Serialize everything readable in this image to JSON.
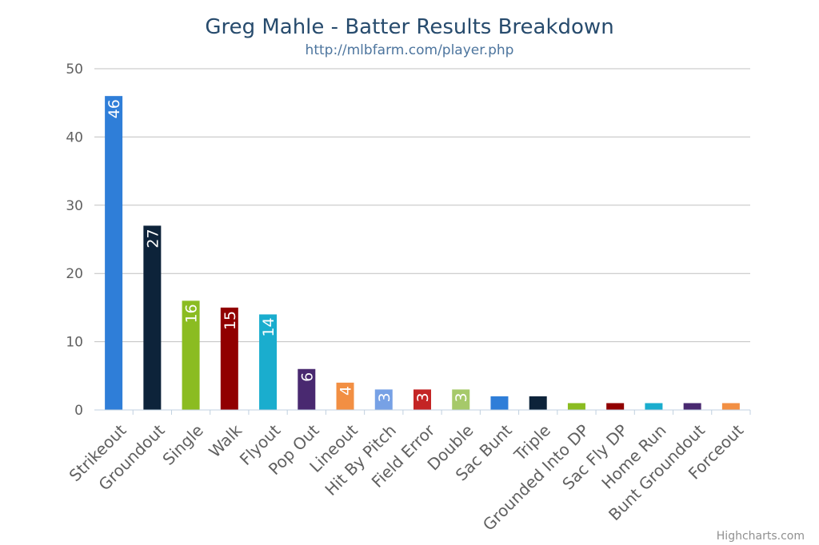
{
  "chart_data": {
    "type": "bar",
    "title": "Greg Mahle - Batter Results Breakdown",
    "subtitle": "http://mlbfarm.com/player.php",
    "credit": "Highcharts.com",
    "categories": [
      "Strikeout",
      "Groundout",
      "Single",
      "Walk",
      "Flyout",
      "Pop Out",
      "Lineout",
      "Hit By Pitch",
      "Field Error",
      "Double",
      "Sac Bunt",
      "Triple",
      "Grounded Into DP",
      "Sac Fly DP",
      "Home Run",
      "Bunt Groundout",
      "Forceout"
    ],
    "values": [
      46,
      27,
      16,
      15,
      14,
      6,
      4,
      3,
      3,
      3,
      2,
      2,
      1,
      1,
      1,
      1,
      1
    ],
    "data_labels": [
      "46",
      "27",
      "16",
      "15",
      "14",
      "6",
      "4",
      "3",
      "3",
      "3",
      "",
      "",
      "",
      "",
      "",
      "",
      ""
    ],
    "colors": [
      "#2f7ed8",
      "#0d233a",
      "#8bbc21",
      "#910000",
      "#1aadce",
      "#492970",
      "#f28f43",
      "#77a1e5",
      "#c42525",
      "#a6c96a",
      "#2f7ed8",
      "#0d233a",
      "#8bbc21",
      "#910000",
      "#1aadce",
      "#492970",
      "#f28f43"
    ],
    "yticks": [
      "0",
      "10",
      "20",
      "30",
      "40",
      "50"
    ],
    "ylim": [
      0,
      50
    ],
    "grid": true,
    "legend": "none"
  }
}
